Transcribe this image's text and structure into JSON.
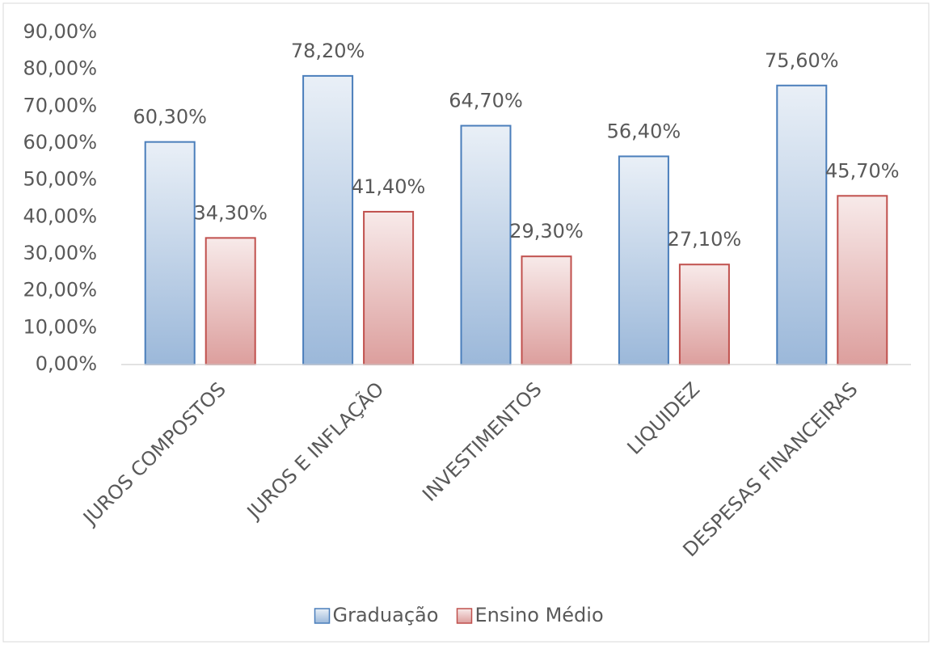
{
  "chart_data": {
    "type": "bar",
    "categories": [
      "JUROS COMPOSTOS",
      "JUROS E INFLAÇÃO",
      "INVESTIMENTOS",
      "LIQUIDEZ",
      "DESPESAS FINANCEIRAS"
    ],
    "series": [
      {
        "name": "Graduação",
        "color": "#4a7ebb",
        "values": [
          60.3,
          78.2,
          64.7,
          56.4,
          75.6
        ],
        "value_labels": [
          "60,30%",
          "78,20%",
          "64,70%",
          "56,40%",
          "75,60%"
        ]
      },
      {
        "name": "Ensino Médio",
        "color": "#c0504d",
        "values": [
          34.3,
          41.4,
          29.3,
          27.1,
          45.7
        ],
        "value_labels": [
          "34,30%",
          "41,40%",
          "29,30%",
          "27,10%",
          "45,70%"
        ]
      }
    ],
    "ylim": [
      0,
      90
    ],
    "yticks": [
      {
        "value": 0,
        "label": "0,00%"
      },
      {
        "value": 10,
        "label": "10,00%"
      },
      {
        "value": 20,
        "label": "20,00%"
      },
      {
        "value": 30,
        "label": "30,00%"
      },
      {
        "value": 40,
        "label": "40,00%"
      },
      {
        "value": 50,
        "label": "50,00%"
      },
      {
        "value": 60,
        "label": "60,00%"
      },
      {
        "value": 70,
        "label": "70,00%"
      },
      {
        "value": 80,
        "label": "80,00%"
      },
      {
        "value": 90,
        "label": "90,00%"
      }
    ],
    "grid": false,
    "legend": "bottom"
  }
}
